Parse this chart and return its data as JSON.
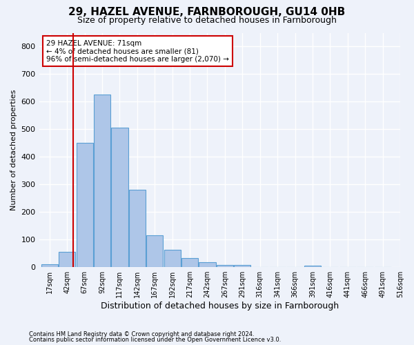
{
  "title1": "29, HAZEL AVENUE, FARNBOROUGH, GU14 0HB",
  "title2": "Size of property relative to detached houses in Farnborough",
  "xlabel": "Distribution of detached houses by size in Farnborough",
  "ylabel": "Number of detached properties",
  "footnote1": "Contains HM Land Registry data © Crown copyright and database right 2024.",
  "footnote2": "Contains public sector information licensed under the Open Government Licence v3.0.",
  "bin_labels": [
    "17sqm",
    "42sqm",
    "67sqm",
    "92sqm",
    "117sqm",
    "142sqm",
    "167sqm",
    "192sqm",
    "217sqm",
    "242sqm",
    "267sqm",
    "291sqm",
    "316sqm",
    "341sqm",
    "366sqm",
    "391sqm",
    "416sqm",
    "441sqm",
    "466sqm",
    "491sqm",
    "516sqm"
  ],
  "bar_values": [
    10,
    55,
    450,
    625,
    505,
    280,
    115,
    62,
    33,
    18,
    8,
    8,
    0,
    0,
    0,
    5,
    0,
    0,
    0,
    0
  ],
  "bar_color": "#aec6e8",
  "bar_edge_color": "#5a9fd4",
  "vline_x": 1.35,
  "vline_color": "#cc0000",
  "annotation_text": "29 HAZEL AVENUE: 71sqm\n← 4% of detached houses are smaller (81)\n96% of semi-detached houses are larger (2,070) →",
  "annotation_box_color": "#ffffff",
  "annotation_border_color": "#cc0000",
  "ylim": [
    0,
    850
  ],
  "yticks": [
    0,
    100,
    200,
    300,
    400,
    500,
    600,
    700,
    800
  ],
  "background_color": "#eef2fa",
  "plot_bg_color": "#eef2fa",
  "grid_color": "#ffffff",
  "title1_fontsize": 11,
  "title2_fontsize": 9,
  "xlabel_fontsize": 9,
  "ylabel_fontsize": 8
}
